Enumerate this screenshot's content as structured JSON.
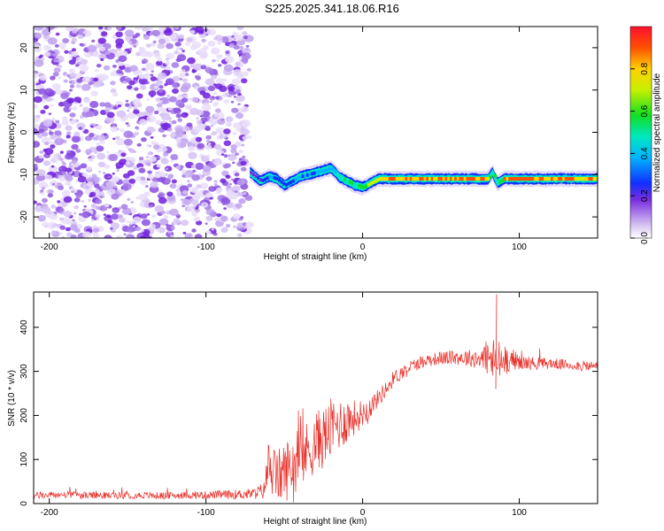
{
  "chart_data": [
    {
      "type": "heatmap",
      "title": "S225.2025.341.18.06.R16",
      "xlabel": "Height of straight line (km)",
      "ylabel": "Frequency (Hz)",
      "xlim": [
        -210,
        150
      ],
      "ylim": [
        -25,
        25
      ],
      "xticks": [
        -200,
        -100,
        0,
        100
      ],
      "yticks": [
        -20,
        -10,
        0,
        10,
        20
      ],
      "noise_region_x": [
        -210,
        -72
      ],
      "ridge": {
        "x": [
          -72,
          -65,
          -60,
          -55,
          -50,
          -45,
          -40,
          -35,
          -30,
          -25,
          -20,
          -15,
          -10,
          -5,
          0,
          5,
          10,
          20,
          40,
          60,
          80,
          83,
          86,
          90,
          100,
          120,
          150
        ],
        "y": [
          -9.5,
          -11.5,
          -10.5,
          -11.0,
          -12.5,
          -11.5,
          -10.5,
          -10.0,
          -9.5,
          -9.0,
          -8.5,
          -10.5,
          -11.5,
          -12.5,
          -13.0,
          -12.0,
          -11.0,
          -11.0,
          -11.0,
          -11.0,
          -11.0,
          -9.5,
          -12.0,
          -11.0,
          -11.0,
          -11.0,
          -11.0
        ],
        "amplitude": [
          0.15,
          0.3,
          0.35,
          0.3,
          0.35,
          0.35,
          0.4,
          0.35,
          0.4,
          0.4,
          0.45,
          0.5,
          0.55,
          0.6,
          0.65,
          0.7,
          0.8,
          0.9,
          0.9,
          0.9,
          0.85,
          0.5,
          0.6,
          0.85,
          0.9,
          0.9,
          0.85
        ]
      },
      "colorbar": {
        "label": "Normalized spectral amplitude",
        "range": [
          0,
          1
        ],
        "ticks": [
          "0.0",
          "0.2",
          "0.4",
          "0.6",
          "0.8"
        ]
      }
    },
    {
      "type": "line",
      "xlabel": "Height of straight line (km)",
      "ylabel": "SNR (10 * v/v)",
      "xlim": [
        -210,
        150
      ],
      "ylim": [
        0,
        480
      ],
      "xticks": [
        -200,
        -100,
        0,
        100
      ],
      "yticks": [
        0,
        100,
        200,
        300,
        400
      ],
      "series": [
        {
          "name": "SNR",
          "color": "#e8302a",
          "x": [
            -210,
            -190,
            -170,
            -150,
            -130,
            -110,
            -90,
            -70,
            -63,
            -60,
            -55,
            -50,
            -45,
            -40,
            -35,
            -30,
            -25,
            -20,
            -15,
            -10,
            -5,
            0,
            5,
            10,
            15,
            20,
            30,
            40,
            50,
            60,
            70,
            80,
            85,
            90,
            95,
            100,
            110,
            120,
            130,
            140,
            150
          ],
          "y": [
            18,
            20,
            18,
            19,
            18,
            19,
            20,
            22,
            30,
            90,
            60,
            70,
            90,
            100,
            120,
            140,
            150,
            170,
            180,
            190,
            195,
            205,
            220,
            240,
            260,
            285,
            310,
            325,
            330,
            332,
            330,
            330,
            320,
            325,
            330,
            320,
            318,
            318,
            315,
            312,
            312
          ],
          "noise_amplitude": [
            8,
            8,
            8,
            8,
            8,
            8,
            10,
            12,
            20,
            60,
            60,
            70,
            70,
            70,
            70,
            70,
            70,
            70,
            60,
            55,
            40,
            30,
            25,
            20,
            18,
            18,
            15,
            15,
            15,
            18,
            20,
            40,
            60,
            40,
            25,
            18,
            15,
            12,
            12,
            12,
            12
          ]
        }
      ],
      "annotations": [
        {
          "x": 85,
          "y": 475,
          "text": ""
        }
      ]
    }
  ]
}
